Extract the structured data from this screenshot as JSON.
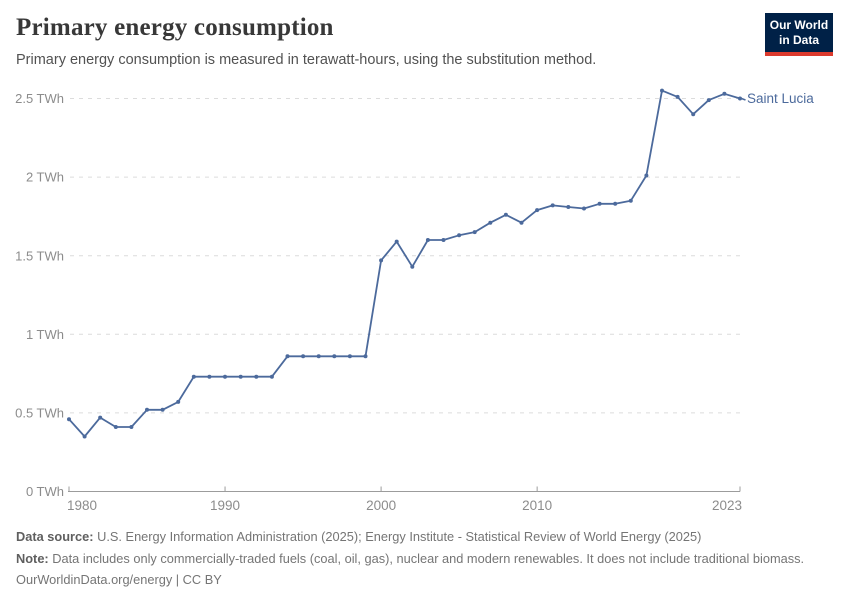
{
  "header": {
    "title": "Primary energy consumption",
    "subtitle": "Primary energy consumption is measured in terawatt-hours, using the substitution method.",
    "logo": {
      "line1": "Our World",
      "line2": "in Data",
      "bg_color": "#002147",
      "accent_color": "#dc3a2d"
    }
  },
  "chart_data": {
    "type": "line",
    "title": "Primary energy consumption",
    "ylabel": "",
    "xlabel": "",
    "unit": "TWh",
    "grid": true,
    "ylim": [
      0,
      2.5
    ],
    "x": [
      1980,
      1981,
      1982,
      1983,
      1984,
      1985,
      1986,
      1987,
      1988,
      1989,
      1990,
      1991,
      1992,
      1993,
      1994,
      1995,
      1996,
      1997,
      1998,
      1999,
      2000,
      2001,
      2002,
      2003,
      2004,
      2005,
      2006,
      2007,
      2008,
      2009,
      2010,
      2011,
      2012,
      2013,
      2014,
      2015,
      2016,
      2017,
      2018,
      2019,
      2020,
      2021,
      2022,
      2023
    ],
    "series": [
      {
        "name": "Saint Lucia",
        "color": "#4c6a9c",
        "values": [
          0.46,
          0.35,
          0.47,
          0.41,
          0.41,
          0.52,
          0.52,
          0.57,
          0.73,
          0.73,
          0.73,
          0.73,
          0.73,
          0.73,
          0.86,
          0.86,
          0.86,
          0.86,
          0.86,
          0.86,
          1.47,
          1.59,
          1.43,
          1.6,
          1.6,
          1.63,
          1.65,
          1.71,
          1.76,
          1.71,
          1.79,
          1.82,
          1.81,
          1.8,
          1.83,
          1.83,
          1.85,
          2.01,
          2.55,
          2.51,
          2.4,
          2.49,
          2.53,
          2.5
        ]
      }
    ],
    "yticks": [
      {
        "value": 0,
        "label": "0 TWh"
      },
      {
        "value": 0.5,
        "label": "0.5 TWh"
      },
      {
        "value": 1,
        "label": "1 TWh"
      },
      {
        "value": 1.5,
        "label": "1.5 TWh"
      },
      {
        "value": 2,
        "label": "2 TWh"
      },
      {
        "value": 2.5,
        "label": "2.5 TWh"
      }
    ],
    "xticks": [
      1980,
      1990,
      2000,
      2010,
      2023
    ],
    "entity_label": "Saint Lucia",
    "colors": {
      "line": "#4c6a9c",
      "grid": "#dcdcdc",
      "axis": "#9c9c9c",
      "tick_text": "#8c8c8c"
    }
  },
  "footer": {
    "source_label": "Data source:",
    "source_text": " U.S. Energy Information Administration (2025); Energy Institute - Statistical Review of World Energy (2025)",
    "note_label": "Note:",
    "note_text": " Data includes only commercially-traded fuels (coal, oil, gas), nuclear and modern renewables. It does not include traditional biomass.",
    "license": "OurWorldinData.org/energy | CC BY"
  }
}
